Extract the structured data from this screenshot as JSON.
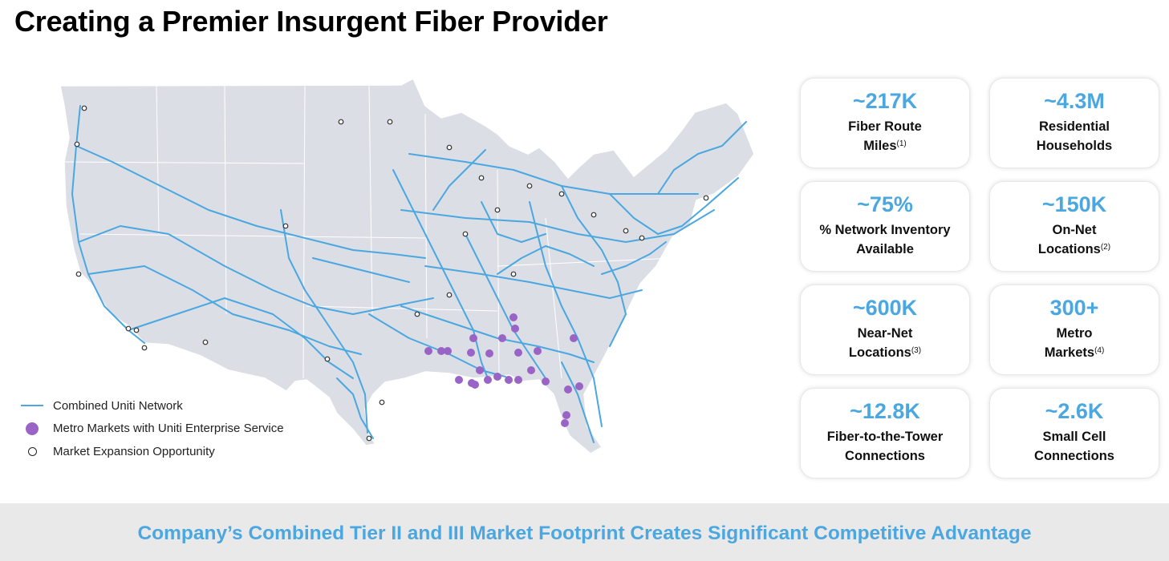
{
  "title": "Creating a Premier Insurgent Fiber Provider",
  "legend": {
    "network": "Combined Uniti Network",
    "metro": "Metro Markets with Uniti Enterprise Service",
    "expansion": "Market Expansion Opportunity"
  },
  "stats": [
    {
      "value": "~217K",
      "line1": "Fiber Route",
      "line2": "Miles",
      "note": "(1)"
    },
    {
      "value": "~4.3M",
      "line1": "Residential",
      "line2": "Households",
      "note": ""
    },
    {
      "value": "~75%",
      "line1": "% Network Inventory",
      "line2": "Available",
      "note": ""
    },
    {
      "value": "~150K",
      "line1": "On-Net",
      "line2": "Locations",
      "note": "(2)"
    },
    {
      "value": "~600K",
      "line1": "Near-Net",
      "line2": "Locations",
      "note": "(3)"
    },
    {
      "value": "300+",
      "line1": "Metro",
      "line2": "Markets",
      "note": "(4)"
    },
    {
      "value": "~12.8K",
      "line1": "Fiber-to-the-Tower",
      "line2": "Connections",
      "note": ""
    },
    {
      "value": "~2.6K",
      "line1": "Small Cell",
      "line2": "Connections",
      "note": ""
    }
  ],
  "footer": "Company’s Combined Tier II and III Market Footprint Creates Significant Competitive Advantage",
  "colors": {
    "accent_blue": "#4aa7e0",
    "metro_purple": "#9a63c6",
    "map_land": "#dcdee6",
    "footer_band": "#e9e9ea"
  }
}
